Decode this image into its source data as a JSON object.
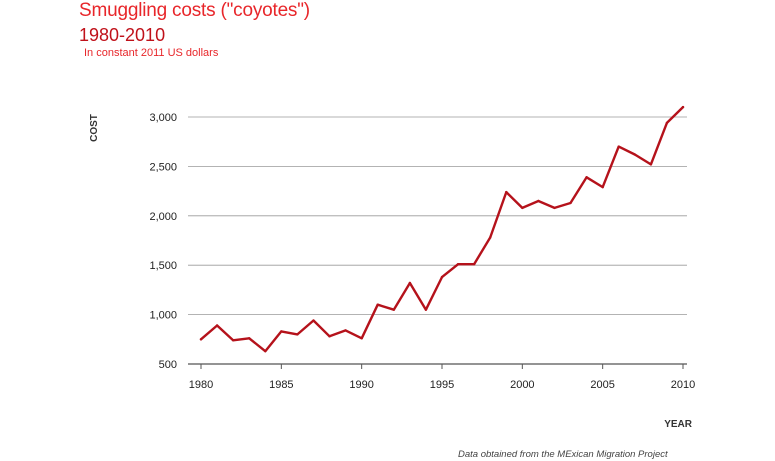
{
  "title": "Smuggling costs (\"coyotes\")",
  "subtitle": "1980-2010",
  "note": "In constant 2011 US dollars",
  "source": "Data obtained from the MExican Migration Project",
  "colors": {
    "line": "#b5121b",
    "title": "#e8262a",
    "grid": "#9a9a9a"
  },
  "chart_data": {
    "type": "line",
    "title": "Smuggling costs (\"coyotes\")",
    "xlabel": "YEAR",
    "ylabel": "COST",
    "xlim": [
      1980,
      2010
    ],
    "ylim": [
      500,
      3000
    ],
    "x_ticks": [
      1980,
      1985,
      1990,
      1995,
      2000,
      2005,
      2010
    ],
    "y_ticks": [
      500,
      1000,
      1500,
      2000,
      2500,
      3000
    ],
    "y_tick_labels": [
      "500",
      "1,000",
      "1,500",
      "2,000",
      "2,500",
      "3,000"
    ],
    "grid": "horizontal",
    "x": [
      1980,
      1981,
      1982,
      1983,
      1984,
      1985,
      1986,
      1987,
      1988,
      1989,
      1990,
      1991,
      1992,
      1993,
      1994,
      1995,
      1996,
      1997,
      1998,
      1999,
      2000,
      2001,
      2002,
      2003,
      2004,
      2005,
      2006,
      2007,
      2008,
      2009,
      2010
    ],
    "values": [
      750,
      890,
      740,
      760,
      630,
      830,
      800,
      940,
      780,
      840,
      760,
      1100,
      1050,
      1320,
      1050,
      1380,
      1510,
      1510,
      1780,
      2240,
      2080,
      2150,
      2080,
      2130,
      2390,
      2290,
      2700,
      2620,
      2520,
      2940,
      3100
    ]
  }
}
